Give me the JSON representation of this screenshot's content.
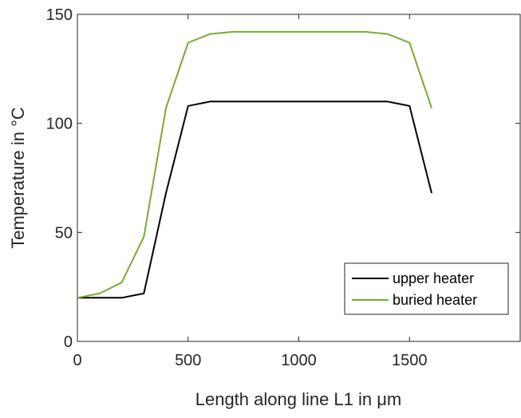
{
  "chart_data": {
    "type": "line",
    "title": "",
    "xlabel": "Length along line L1 in μm",
    "ylabel": "Temperature in °C",
    "xlim": [
      0,
      2000
    ],
    "ylim": [
      0,
      150
    ],
    "xticks": [
      0,
      500,
      1000,
      1500
    ],
    "yticks": [
      0,
      50,
      100,
      150
    ],
    "x_tick_labels": [
      "0",
      "500",
      "1000",
      "1500"
    ],
    "y_tick_labels": [
      "0",
      "50",
      "100",
      "150"
    ],
    "grid": false,
    "legend_position": "bottom-right",
    "series": [
      {
        "name": "upper heater",
        "color": "#000000",
        "x": [
          0,
          100,
          200,
          300,
          400,
          500,
          600,
          700,
          800,
          900,
          1000,
          1100,
          1200,
          1300,
          1400,
          1500,
          1600
        ],
        "y": [
          20,
          20,
          20,
          22,
          68,
          108,
          110,
          110,
          110,
          110,
          110,
          110,
          110,
          110,
          110,
          108,
          68
        ]
      },
      {
        "name": "buried heater",
        "color": "#77ac30",
        "x": [
          0,
          100,
          200,
          300,
          400,
          500,
          600,
          700,
          800,
          900,
          1000,
          1100,
          1200,
          1300,
          1400,
          1500,
          1600
        ],
        "y": [
          20,
          22,
          27,
          48,
          107,
          137,
          141,
          142,
          142,
          142,
          142,
          142,
          142,
          142,
          141,
          137,
          107
        ]
      }
    ]
  }
}
